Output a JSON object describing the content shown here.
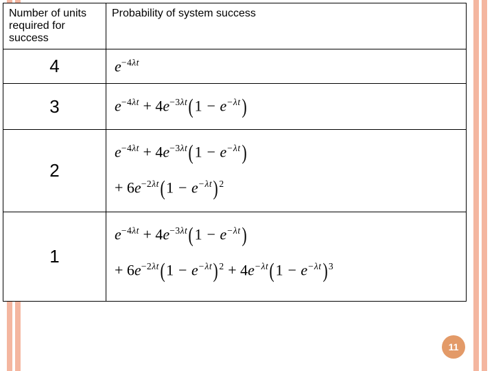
{
  "table": {
    "header": {
      "col1": "Number of units required for success",
      "col2": "Probability of system success"
    },
    "rows": [
      {
        "n": "4"
      },
      {
        "n": "3"
      },
      {
        "n": "2"
      },
      {
        "n": "1"
      }
    ]
  },
  "slide_number": "11",
  "colors": {
    "stripe": "#f4b6a0",
    "badge_bg": "#e39a68",
    "badge_fg": "#ffffff",
    "border": "#000000",
    "bg": "#ffffff"
  },
  "formulas": {
    "row4": "e^{-4\\lambda t}",
    "row3": "e^{-4\\lambda t} + 4e^{-3\\lambda t}(1 - e^{-\\lambda t})",
    "row2": "e^{-4\\lambda t} + 4e^{-3\\lambda t}(1 - e^{-\\lambda t}) + 6e^{-2\\lambda t}(1 - e^{-\\lambda t})^2",
    "row1": "e^{-4\\lambda t} + 4e^{-3\\lambda t}(1 - e^{-\\lambda t}) + 6e^{-2\\lambda t}(1 - e^{-\\lambda t})^2 + 4e^{-\\lambda t}(1 - e^{-\\lambda t})^3"
  }
}
